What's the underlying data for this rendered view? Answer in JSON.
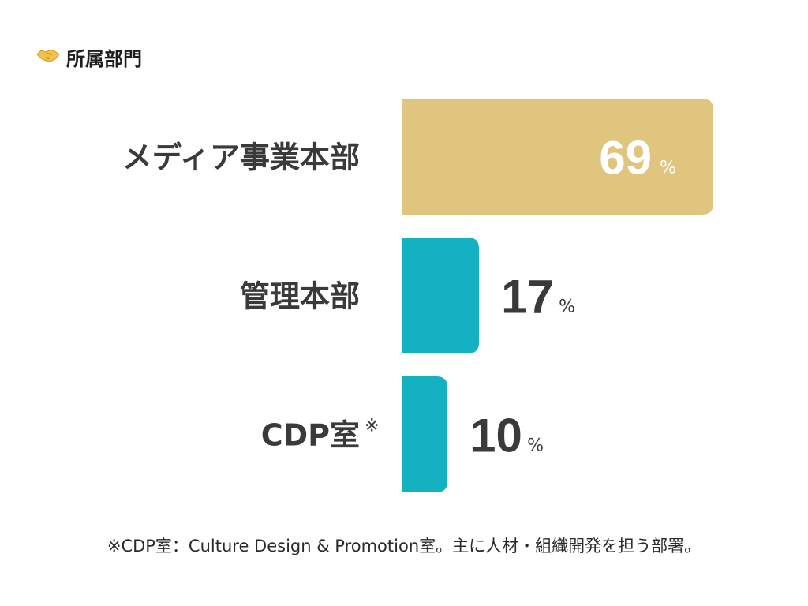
{
  "header": {
    "icon": "handshake-icon",
    "title": "所属部門"
  },
  "chart_data": {
    "type": "bar",
    "orientation": "horizontal",
    "categories": [
      "メディア事業本部",
      "管理本部",
      "CDP室"
    ],
    "values": [
      69,
      17,
      10
    ],
    "unit": "%",
    "category_notes": [
      "",
      "",
      "※"
    ],
    "bar_colors": [
      "#dfc57e",
      "#14b1c0",
      "#14b1c0"
    ],
    "value_label_colors": [
      "#ffffff",
      "#3a3a3a",
      "#3a3a3a"
    ],
    "unit_label_colors": [
      "#ffffff",
      "#3a3a3a",
      "#3a3a3a"
    ],
    "value_label_position": [
      "inside",
      "outside",
      "outside"
    ],
    "xlim": [
      0,
      69
    ],
    "grid": false,
    "legend": "none"
  },
  "footnote": "※CDP室：Culture Design & Promotion室。主に人材・組織開発を担う部署。"
}
